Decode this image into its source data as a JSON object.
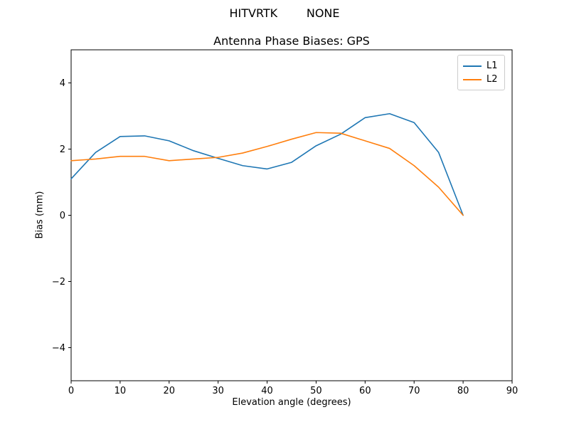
{
  "suptitle": "HITVRTK        NONE",
  "chart_data": {
    "type": "line",
    "title": "Antenna Phase Biases: GPS",
    "xlabel": "Elevation angle (degrees)",
    "ylabel": "Bias (mm)",
    "xlim": [
      0,
      90
    ],
    "ylim": [
      -5,
      5
    ],
    "xticks": [
      0,
      10,
      20,
      30,
      40,
      50,
      60,
      70,
      80,
      90
    ],
    "yticks": [
      -4,
      -2,
      0,
      2,
      4
    ],
    "grid": false,
    "legend_position": "upper right",
    "x": [
      0,
      5,
      10,
      15,
      20,
      25,
      30,
      35,
      40,
      45,
      50,
      55,
      60,
      65,
      70,
      75,
      80
    ],
    "series": [
      {
        "name": "L1",
        "color": "#1f77b4",
        "values": [
          1.1,
          1.9,
          2.38,
          2.4,
          2.25,
          1.95,
          1.72,
          1.5,
          1.4,
          1.6,
          2.1,
          2.45,
          2.95,
          3.07,
          2.8,
          1.9,
          0.0
        ]
      },
      {
        "name": "L2",
        "color": "#ff7f0e",
        "values": [
          1.65,
          1.7,
          1.78,
          1.78,
          1.65,
          1.7,
          1.75,
          1.88,
          2.08,
          2.3,
          2.5,
          2.48,
          2.25,
          2.02,
          1.5,
          0.85,
          0.0
        ]
      }
    ]
  }
}
